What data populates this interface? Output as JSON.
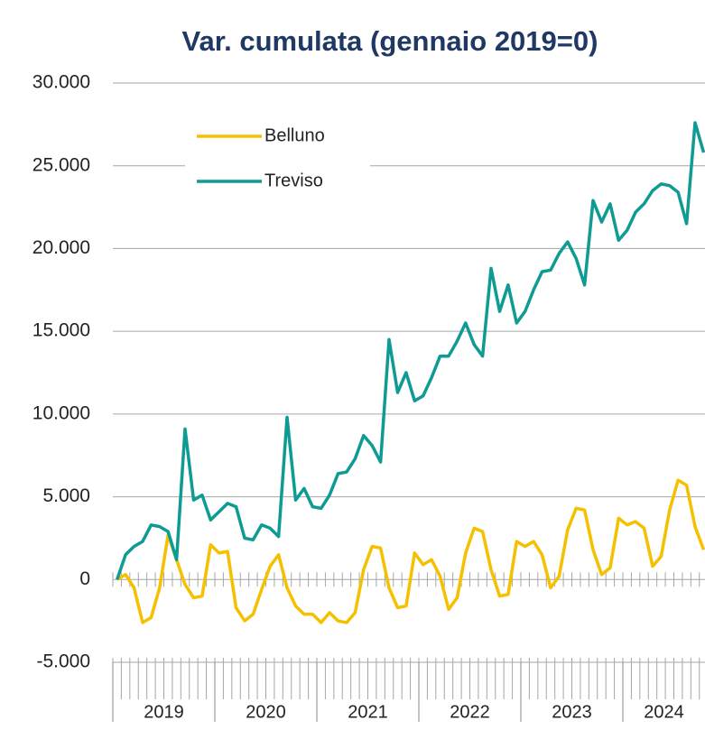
{
  "chart_data": {
    "type": "line",
    "title": "Var. cumulata (gennaio 2019=0)",
    "groups": [
      "2019",
      "2020",
      "2021",
      "2022",
      "2023",
      "2024"
    ],
    "categories": [
      null,
      null,
      null,
      null,
      null,
      null,
      null,
      null,
      null,
      null,
      null,
      null,
      null,
      null,
      null,
      null,
      null,
      null,
      null,
      null,
      null,
      null,
      null,
      null,
      null,
      null,
      null,
      null,
      null,
      null,
      null,
      null,
      null,
      null,
      null,
      null,
      null,
      null,
      null,
      null,
      null,
      null,
      null,
      null,
      null,
      null,
      null,
      null,
      null,
      null,
      null,
      null,
      null,
      null,
      null,
      null,
      null,
      null,
      null,
      null,
      null,
      null,
      null,
      null,
      null,
      null,
      null,
      null,
      null,
      null
    ],
    "series": [
      {
        "name": "Belluno",
        "color": "#f5c000",
        "values": [
          0,
          300,
          -500,
          -2600,
          -2300,
          -500,
          2700,
          1200,
          -300,
          -1100,
          -1000,
          2100,
          1600,
          1700,
          -1700,
          -2500,
          -2100,
          -600,
          800,
          1500,
          -500,
          -1600,
          -2100,
          -2100,
          -2600,
          -2000,
          -2500,
          -2600,
          -2000,
          600,
          2000,
          1900,
          -500,
          -1700,
          -1600,
          1600,
          900,
          1200,
          200,
          -1800,
          -1100,
          1600,
          3100,
          2900,
          600,
          -1000,
          -900,
          2300,
          2000,
          2300,
          1500,
          -500,
          200,
          3000,
          4300,
          4200,
          1800,
          300,
          700,
          3700,
          3300,
          3500,
          3100,
          800,
          1400,
          4200,
          6000,
          5700,
          3200,
          1800
        ]
      },
      {
        "name": "Treviso",
        "color": "#0e9b94",
        "values": [
          0,
          1500,
          2000,
          2300,
          3300,
          3200,
          2900,
          1200,
          9100,
          4800,
          5100,
          3600,
          4100,
          4600,
          4400,
          2500,
          2400,
          3300,
          3100,
          2600,
          9800,
          4800,
          5500,
          4400,
          4300,
          5100,
          6400,
          6500,
          7300,
          8700,
          8100,
          7100,
          14500,
          11300,
          12500,
          10800,
          11100,
          12200,
          13500,
          13500,
          14400,
          15500,
          14200,
          13500,
          18800,
          16200,
          17800,
          15500,
          16200,
          17500,
          18600,
          18700,
          19700,
          20400,
          19400,
          17800,
          22900,
          21600,
          22700,
          20500,
          21100,
          22200,
          22700,
          23500,
          23900,
          23800,
          23400,
          21500,
          27600,
          25800
        ]
      }
    ],
    "ylim": [
      -5000,
      30000
    ],
    "yticks": [
      {
        "value": -5000,
        "label": "-5.000"
      },
      0,
      {
        "value": 5000,
        "label": "5.000"
      },
      {
        "value": 10000,
        "label": "10.000"
      },
      {
        "value": 15000,
        "label": "15.000"
      },
      {
        "value": 20000,
        "label": "20.000"
      },
      {
        "value": 25000,
        "label": "25.000"
      },
      {
        "value": 30000,
        "label": "30.000"
      }
    ],
    "grid": true,
    "legend": "upper left"
  }
}
